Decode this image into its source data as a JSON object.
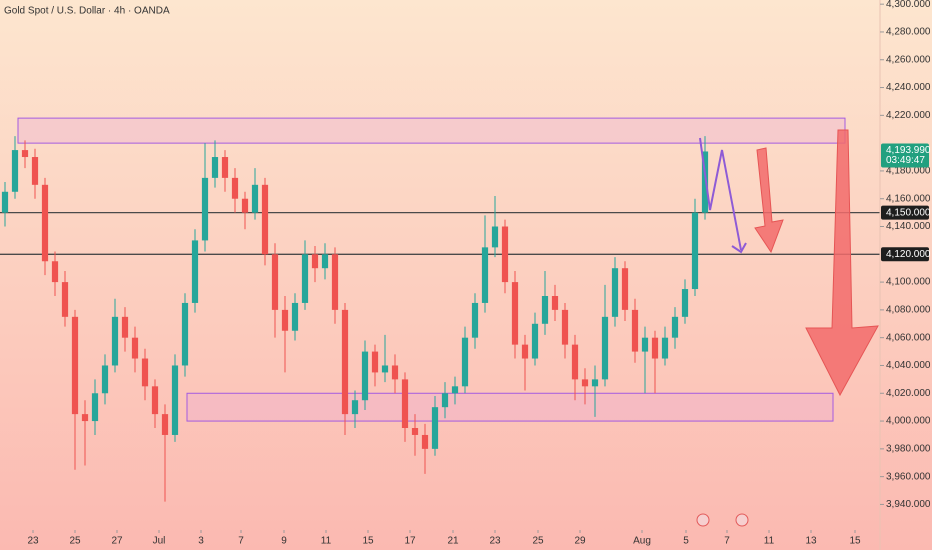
{
  "chart_data": {
    "type": "candlestick",
    "title": "Gold Spot / U.S. Dollar · 4h · OANDA",
    "up_color": "#26a69a",
    "down_color": "#ef5350",
    "candles": [
      [
        4150,
        4172,
        4140,
        4165
      ],
      [
        4165,
        4205,
        4160,
        4195
      ],
      [
        4195,
        4202,
        4182,
        4190
      ],
      [
        4190,
        4196,
        4160,
        4170
      ],
      [
        4170,
        4175,
        4105,
        4115
      ],
      [
        4115,
        4122,
        4090,
        4100
      ],
      [
        4100,
        4108,
        4068,
        4075
      ],
      [
        4075,
        4080,
        3965,
        4005
      ],
      [
        4005,
        4015,
        3968,
        4000
      ],
      [
        4000,
        4030,
        3990,
        4020
      ],
      [
        4020,
        4048,
        4012,
        4040
      ],
      [
        4040,
        4088,
        4035,
        4075
      ],
      [
        4075,
        4082,
        4050,
        4060
      ],
      [
        4060,
        4068,
        4035,
        4045
      ],
      [
        4045,
        4052,
        4015,
        4025
      ],
      [
        4025,
        4030,
        3995,
        4005
      ],
      [
        4005,
        4012,
        3942,
        3990
      ],
      [
        3990,
        4048,
        3985,
        4040
      ],
      [
        4040,
        4092,
        4032,
        4085
      ],
      [
        4085,
        4138,
        4078,
        4130
      ],
      [
        4130,
        4200,
        4122,
        4175
      ],
      [
        4175,
        4202,
        4168,
        4190
      ],
      [
        4190,
        4195,
        4165,
        4175
      ],
      [
        4175,
        4182,
        4150,
        4160
      ],
      [
        4160,
        4165,
        4138,
        4150
      ],
      [
        4150,
        4182,
        4145,
        4170
      ],
      [
        4170,
        4175,
        4112,
        4120
      ],
      [
        4120,
        4128,
        4060,
        4080
      ],
      [
        4080,
        4090,
        4035,
        4065
      ],
      [
        4065,
        4092,
        4058,
        4085
      ],
      [
        4085,
        4130,
        4080,
        4120
      ],
      [
        4120,
        4126,
        4100,
        4110
      ],
      [
        4110,
        4128,
        4102,
        4120
      ],
      [
        4120,
        4125,
        4070,
        4080
      ],
      [
        4080,
        4085,
        3990,
        4005
      ],
      [
        4005,
        4022,
        3995,
        4015
      ],
      [
        4015,
        4058,
        4008,
        4050
      ],
      [
        4050,
        4055,
        4025,
        4035
      ],
      [
        4035,
        4062,
        4028,
        4040
      ],
      [
        4040,
        4048,
        4020,
        4030
      ],
      [
        4030,
        4035,
        3985,
        3995
      ],
      [
        3995,
        4005,
        3975,
        3990
      ],
      [
        3990,
        3998,
        3962,
        3980
      ],
      [
        3980,
        4018,
        3975,
        4010
      ],
      [
        4010,
        4028,
        4002,
        4020
      ],
      [
        4020,
        4032,
        4012,
        4025
      ],
      [
        4025,
        4068,
        4020,
        4060
      ],
      [
        4060,
        4092,
        4052,
        4085
      ],
      [
        4085,
        4148,
        4078,
        4125
      ],
      [
        4125,
        4162,
        4118,
        4140
      ],
      [
        4140,
        4145,
        4092,
        4100
      ],
      [
        4100,
        4108,
        4045,
        4055
      ],
      [
        4055,
        4062,
        4022,
        4045
      ],
      [
        4045,
        4078,
        4040,
        4070
      ],
      [
        4070,
        4108,
        4062,
        4090
      ],
      [
        4090,
        4098,
        4072,
        4080
      ],
      [
        4080,
        4085,
        4045,
        4055
      ],
      [
        4055,
        4062,
        4015,
        4030
      ],
      [
        4030,
        4038,
        4012,
        4025
      ],
      [
        4025,
        4040,
        4003,
        4030
      ],
      [
        4030,
        4098,
        4025,
        4075
      ],
      [
        4075,
        4118,
        4068,
        4110
      ],
      [
        4110,
        4115,
        4072,
        4080
      ],
      [
        4080,
        4088,
        4042,
        4050
      ],
      [
        4050,
        4068,
        4020,
        4060
      ],
      [
        4060,
        4065,
        4020,
        4045
      ],
      [
        4045,
        4068,
        4040,
        4060
      ],
      [
        4060,
        4082,
        4052,
        4075
      ],
      [
        4075,
        4102,
        4070,
        4095
      ],
      [
        4095,
        4160,
        4090,
        4150
      ],
      [
        4150,
        4205,
        4145,
        4194
      ]
    ],
    "xlim": [
      -0.5,
      87.5
    ],
    "xticks": [
      {
        "value": 2.8,
        "label": "23"
      },
      {
        "value": 7,
        "label": "25"
      },
      {
        "value": 11.2,
        "label": "27"
      },
      {
        "value": 15.4,
        "label": "Jul"
      },
      {
        "value": 19.6,
        "label": "3"
      },
      {
        "value": 23.6,
        "label": "7"
      },
      {
        "value": 27.9,
        "label": "9"
      },
      {
        "value": 32.1,
        "label": "11"
      },
      {
        "value": 36.3,
        "label": "15"
      },
      {
        "value": 40.5,
        "label": "17"
      },
      {
        "value": 44.8,
        "label": "21"
      },
      {
        "value": 49,
        "label": "23"
      },
      {
        "value": 53.3,
        "label": "25"
      },
      {
        "value": 57.5,
        "label": "29"
      },
      {
        "value": 63.7,
        "label": "Aug"
      },
      {
        "value": 68.1,
        "label": "5"
      },
      {
        "value": 72.2,
        "label": "7"
      },
      {
        "value": 76.4,
        "label": "11"
      },
      {
        "value": 80.6,
        "label": "13"
      },
      {
        "value": 85,
        "label": "15"
      }
    ],
    "ylim": [
      3936,
      4303
    ],
    "yticks": [
      {
        "value": 3940,
        "label": "3,940.000"
      },
      {
        "value": 3960,
        "label": "3,960.000"
      },
      {
        "value": 3980,
        "label": "3,980.000"
      },
      {
        "value": 4000,
        "label": "4,000.000"
      },
      {
        "value": 4020,
        "label": "4,020.000"
      },
      {
        "value": 4040,
        "label": "4,040.000"
      },
      {
        "value": 4060,
        "label": "4,060.000"
      },
      {
        "value": 4080,
        "label": "4,080.000"
      },
      {
        "value": 4100,
        "label": "4,100.000"
      },
      {
        "value": 4140,
        "label": "4,140.000"
      },
      {
        "value": 4160,
        "label": "4,160.000"
      },
      {
        "value": 4180,
        "label": "4,180.000"
      },
      {
        "value": 4220,
        "label": "4,220.000"
      },
      {
        "value": 4240,
        "label": "4,240.000"
      },
      {
        "value": 4260,
        "label": "4,260.000"
      },
      {
        "value": 4280,
        "label": "4,280.000"
      },
      {
        "value": 4300,
        "label": "4,300.000"
      }
    ],
    "levels": [
      {
        "value": 4150,
        "label": "4,150.000"
      },
      {
        "value": 4120,
        "label": "4,120.000"
      }
    ],
    "zones": [
      [
        4200,
        4218
      ],
      [
        4000,
        4020
      ]
    ],
    "last_price": {
      "value": 4193.99,
      "label": "4,193.990"
    },
    "countdown": "03:49:47"
  }
}
